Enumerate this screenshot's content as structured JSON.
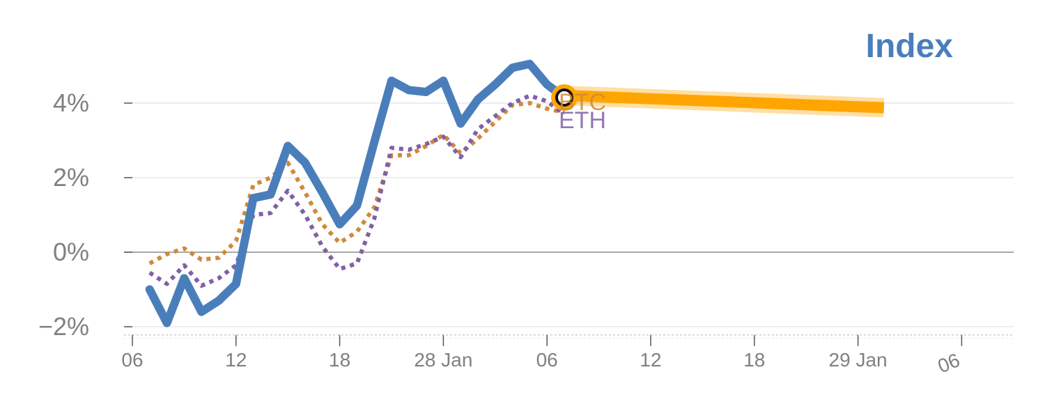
{
  "chart_data": {
    "type": "line",
    "title": "",
    "xlabel": "",
    "ylabel": "",
    "ylim": [
      -2.2,
      4.5
    ],
    "grid": true,
    "y_ticks": [
      {
        "value": -2,
        "label": "−2%"
      },
      {
        "value": 0,
        "label": "0%"
      },
      {
        "value": 2,
        "label": "2%"
      },
      {
        "value": 4,
        "label": "4%"
      }
    ],
    "x_ticks": [
      {
        "day": 0,
        "label": "06"
      },
      {
        "day": 6,
        "label": "12"
      },
      {
        "day": 12,
        "label": "18"
      },
      {
        "day": 18,
        "label": "28 Jan"
      },
      {
        "day": 24,
        "label": "06"
      },
      {
        "day": 30,
        "label": "12"
      },
      {
        "day": 36,
        "label": "18"
      },
      {
        "day": 42,
        "label": "29 Jan"
      },
      {
        "day": 48,
        "label": "06",
        "rotated": true
      }
    ],
    "legend": {
      "text": "Index",
      "position": "top-right",
      "color": "#4a7ebb"
    },
    "series": [
      {
        "name": "Index",
        "color": "#4a7ebb",
        "style": "solid",
        "x": [
          1,
          2,
          3,
          4,
          5,
          6,
          7,
          8,
          9,
          10,
          11,
          12,
          13,
          14,
          15,
          16,
          17,
          18,
          19,
          20,
          21,
          22,
          23,
          24,
          25
        ],
        "values": [
          -1.0,
          -1.9,
          -0.7,
          -1.6,
          -1.3,
          -0.85,
          1.45,
          1.55,
          2.85,
          2.4,
          1.6,
          0.75,
          1.25,
          2.95,
          4.6,
          4.35,
          4.3,
          4.6,
          3.45,
          4.1,
          4.5,
          4.95,
          5.05,
          4.5,
          4.15
        ]
      },
      {
        "name": "BTC",
        "color": "#d08a3c",
        "style": "dotted",
        "label": "BTC",
        "x": [
          1,
          2,
          3,
          4,
          5,
          6,
          7,
          8,
          9,
          10,
          11,
          12,
          13,
          14,
          15,
          16,
          17,
          18,
          19,
          20,
          21,
          22,
          23,
          24,
          25
        ],
        "values": [
          -0.3,
          -0.05,
          0.1,
          -0.2,
          -0.15,
          0.3,
          1.8,
          2.0,
          2.4,
          1.6,
          0.75,
          0.25,
          0.55,
          1.2,
          2.6,
          2.6,
          2.85,
          3.15,
          2.65,
          3.05,
          3.5,
          3.95,
          4.0,
          3.85,
          3.75
        ]
      },
      {
        "name": "ETH",
        "color": "#8060a8",
        "style": "dotted",
        "label": "ETH",
        "x": [
          1,
          2,
          3,
          4,
          5,
          6,
          7,
          8,
          9,
          10,
          11,
          12,
          13,
          14,
          15,
          16,
          17,
          18,
          19,
          20,
          21,
          22,
          23,
          24,
          25
        ],
        "values": [
          -0.55,
          -0.85,
          -0.35,
          -0.9,
          -0.7,
          -0.35,
          1.0,
          1.05,
          1.65,
          1.0,
          0.15,
          -0.45,
          -0.3,
          0.9,
          2.8,
          2.75,
          2.9,
          3.1,
          2.55,
          3.3,
          3.65,
          4.0,
          4.2,
          4.05,
          3.7
        ]
      }
    ],
    "highlight": {
      "color": "#ffa500",
      "start": {
        "day": 25,
        "value": 4.15
      },
      "end": {
        "day": 43.5,
        "value": 3.95
      }
    }
  }
}
